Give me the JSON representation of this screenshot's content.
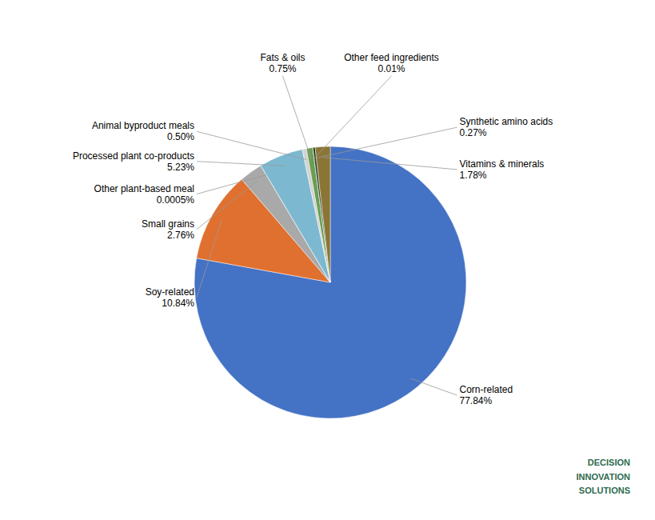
{
  "chart_data": {
    "type": "pie",
    "categories": [
      "Corn-related",
      "Soy-related",
      "Small grains",
      "Other plant-based meal",
      "Processed plant co-products",
      "Animal byproduct meals",
      "Fats & oils",
      "Other feed ingredients",
      "Synthetic amino acids",
      "Vitamins & minerals"
    ],
    "values": [
      77.84,
      10.84,
      2.76,
      0.0005,
      5.23,
      0.5,
      0.75,
      0.01,
      0.27,
      1.78
    ],
    "value_labels": [
      "77.84%",
      "10.84%",
      "2.76%",
      "0.0005%",
      "5.23%",
      "0.50%",
      "0.75%",
      "0.01%",
      "0.27%",
      "1.78%"
    ],
    "colors": [
      "#4472C4",
      "#E07030",
      "#A9A9A9",
      "#BEBEBE",
      "#7CB9D0",
      "#D3D3D3",
      "#6A9E52",
      "#4F5A2A",
      "#1F3D1F",
      "#8B7536"
    ],
    "data_labels": true,
    "annotations": [
      "DECISION\nINNOVATION\nSOLUTIONS"
    ]
  }
}
